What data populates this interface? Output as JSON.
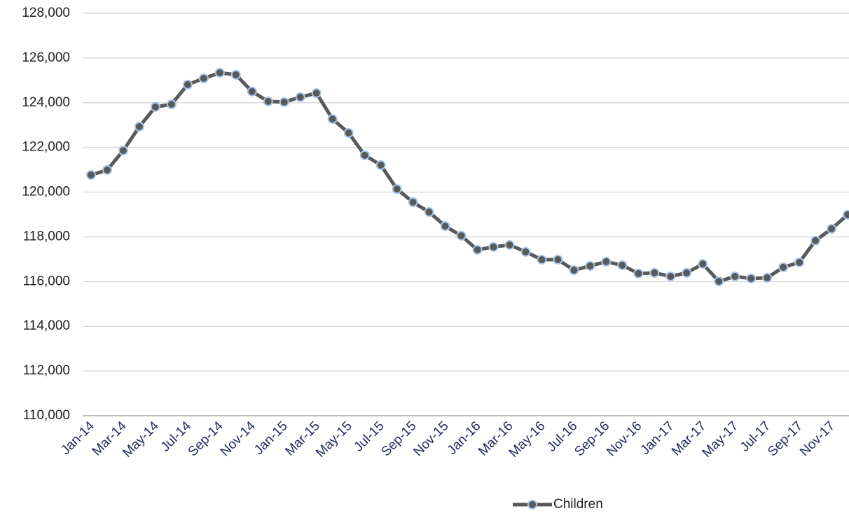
{
  "chart_data": {
    "type": "line",
    "categories": [
      "Jan-14",
      null,
      "Mar-14",
      null,
      "May-14",
      null,
      "Jul-14",
      null,
      "Sep-14",
      null,
      "Nov-14",
      null,
      "Jan-15",
      null,
      "Mar-15",
      null,
      "May-15",
      null,
      "Jul-15",
      null,
      "Sep-15",
      null,
      "Nov-15",
      null,
      "Jan-16",
      null,
      "Mar-16",
      null,
      "May-16",
      null,
      "Jul-16",
      null,
      "Sep-16",
      null,
      "Nov-16",
      null,
      "Jan-17",
      null,
      "Mar-17",
      null,
      "May-17",
      null,
      "Jul-17",
      null,
      "Sep-17",
      null,
      "Nov-17",
      null
    ],
    "series": [
      {
        "name": "Children",
        "color": "#595959",
        "marker_edge": "#a9c5ea",
        "values": [
          120770,
          120990,
          121860,
          122930,
          123810,
          123930,
          124810,
          125090,
          125340,
          125250,
          124500,
          124060,
          124030,
          124250,
          124430,
          123270,
          122650,
          121650,
          121210,
          120140,
          119550,
          119110,
          118480,
          118050,
          117420,
          117550,
          117640,
          117330,
          116980,
          116980,
          116510,
          116700,
          116890,
          116730,
          116360,
          116390,
          116230,
          116390,
          116790,
          116010,
          116230,
          116140,
          116170,
          116640,
          116860,
          117830,
          118360,
          118990
        ]
      }
    ],
    "ylim": [
      110000,
      128000
    ],
    "yticks": [
      {
        "value": 110000,
        "label": "110,000"
      },
      {
        "value": 112000,
        "label": "112,000"
      },
      {
        "value": 114000,
        "label": "114,000"
      },
      {
        "value": 116000,
        "label": "116,000"
      },
      {
        "value": 118000,
        "label": "118,000"
      },
      {
        "value": 120000,
        "label": "120,000"
      },
      {
        "value": 122000,
        "label": "122,000"
      },
      {
        "value": 124000,
        "label": "124,000"
      },
      {
        "value": 126000,
        "label": "126,000"
      },
      {
        "value": 128000,
        "label": "128,000"
      }
    ],
    "grid": true,
    "legend": "bottom"
  }
}
